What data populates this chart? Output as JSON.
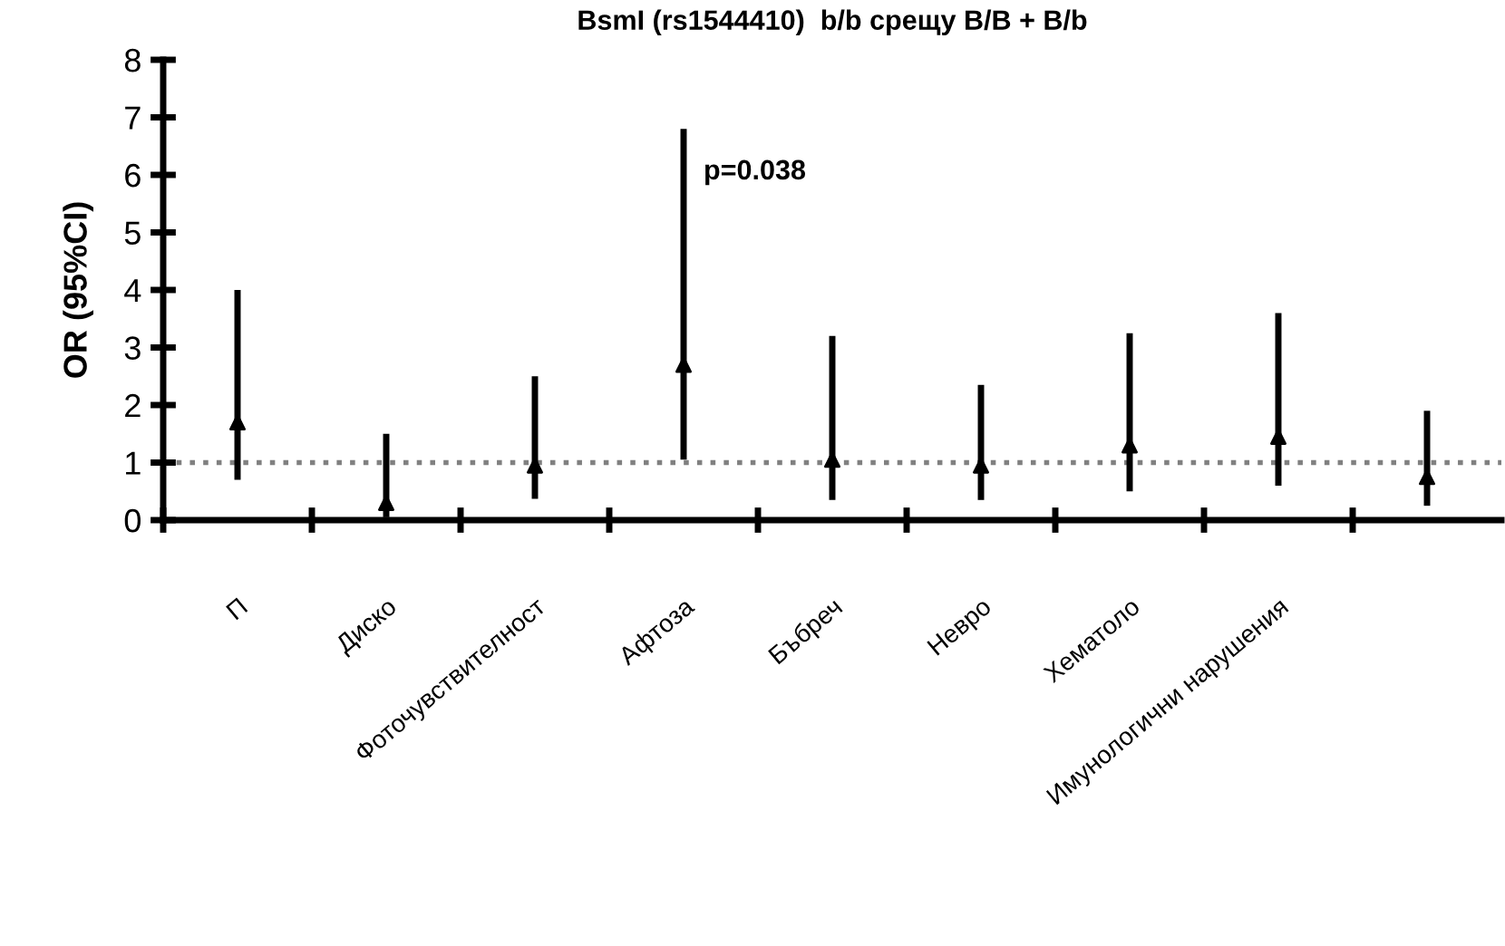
{
  "chart_data": {
    "type": "scatter",
    "title": "BsmI (rs1544410)  b/b срещу B/B + B/b",
    "ylabel": "OR (95%CI)",
    "categories": [
      "П",
      "Диско",
      "Фоточувствителност",
      "Афтоза",
      "Бъбреч",
      "Невро",
      "Хематоло",
      "Имунологични нарушения",
      null
    ],
    "values": [
      1.7,
      0.3,
      0.95,
      2.7,
      1.05,
      0.95,
      1.3,
      1.45,
      0.75
    ],
    "errors": [
      [
        0.7,
        4.0
      ],
      [
        0.05,
        1.5
      ],
      [
        0.37,
        2.5
      ],
      [
        1.05,
        6.8
      ],
      [
        0.35,
        3.2
      ],
      [
        0.35,
        2.35
      ],
      [
        0.5,
        3.25
      ],
      [
        0.6,
        3.6
      ],
      [
        0.25,
        1.9
      ]
    ],
    "color": "#000000",
    "marker": "triangle",
    "ylim": [
      0,
      8
    ],
    "yticks": [
      0,
      1,
      2,
      3,
      4,
      5,
      6,
      7,
      8
    ],
    "ref_lines": [
      {
        "axis": "y",
        "value": 1.0,
        "color": "#808080",
        "line_style": "dotted"
      }
    ],
    "annotations": [
      "p=0.038"
    ],
    "legend": false
  }
}
